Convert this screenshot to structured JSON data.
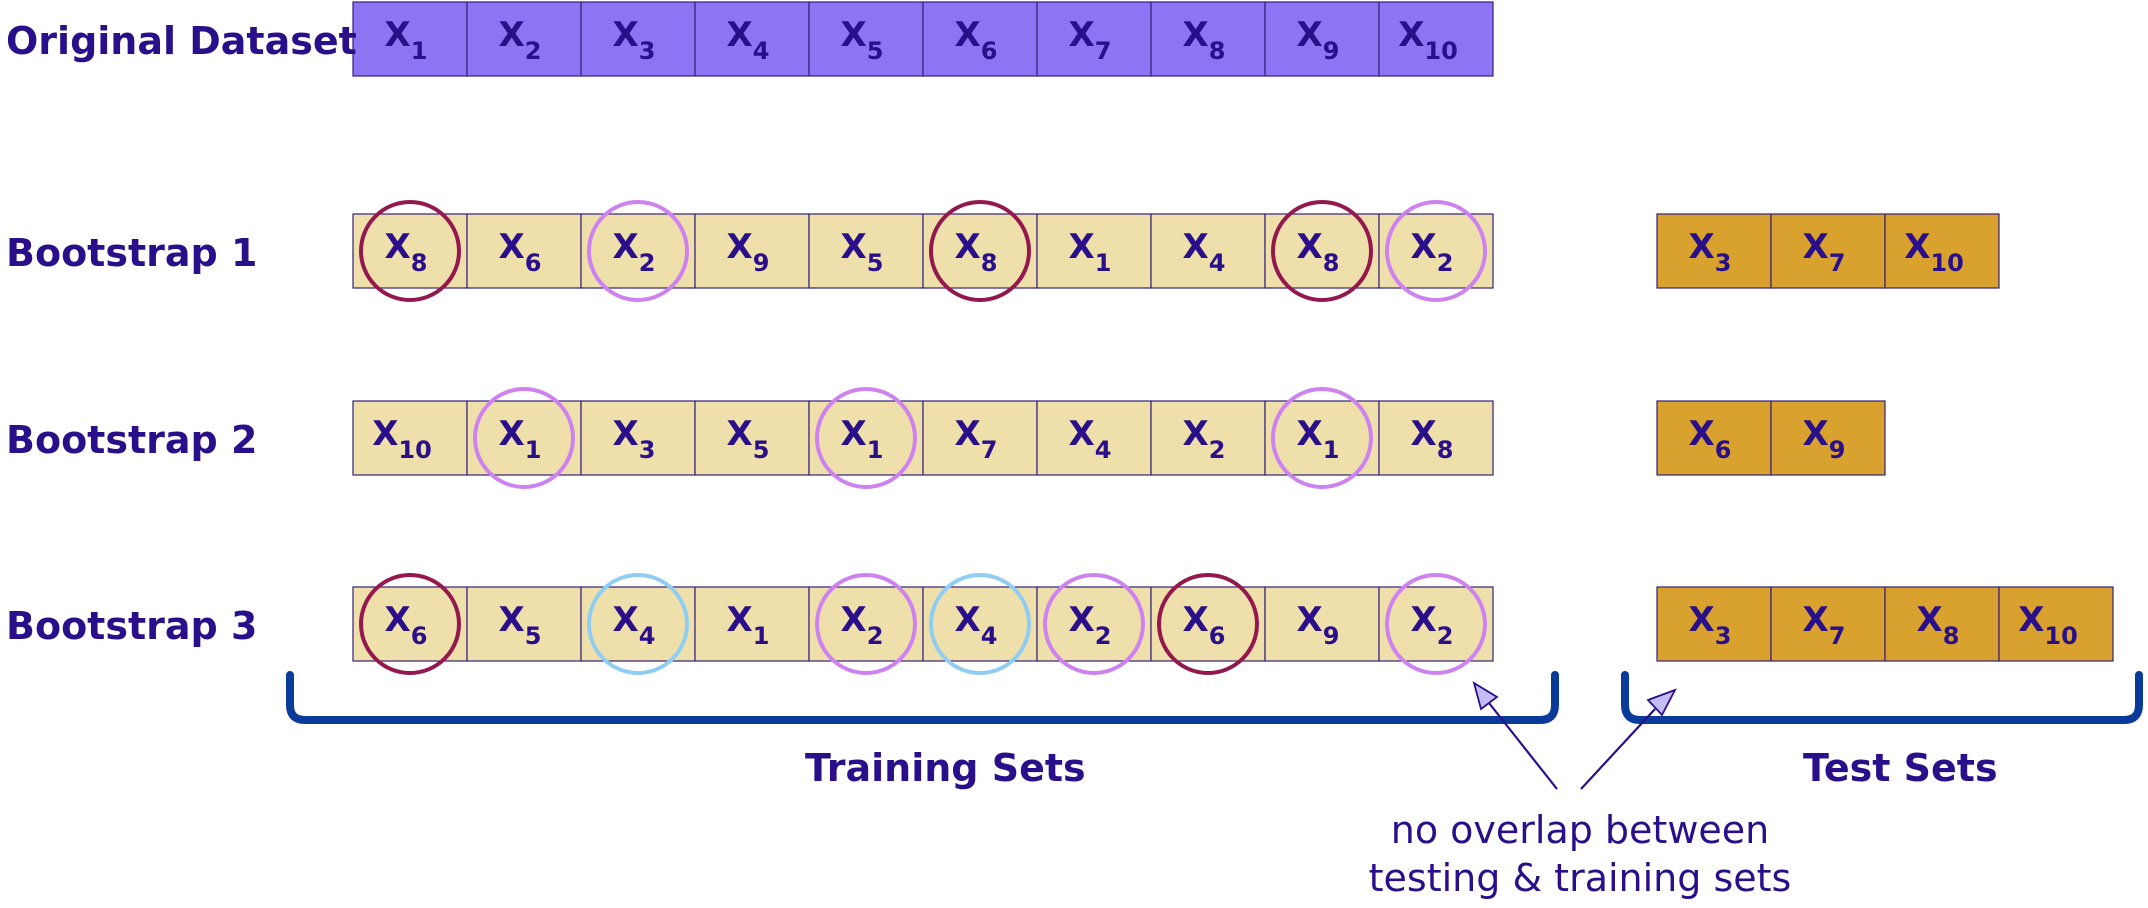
{
  "rows": [
    {
      "label": "Original Dataset",
      "training": [
        {
          "sub": "1"
        },
        {
          "sub": "2"
        },
        {
          "sub": "3"
        },
        {
          "sub": "4"
        },
        {
          "sub": "5"
        },
        {
          "sub": "6"
        },
        {
          "sub": "7"
        },
        {
          "sub": "8"
        },
        {
          "sub": "9"
        },
        {
          "sub": "10"
        }
      ],
      "test": []
    },
    {
      "label": "Bootstrap 1",
      "training": [
        {
          "sub": "8",
          "circle": "maroon"
        },
        {
          "sub": "6"
        },
        {
          "sub": "2",
          "circle": "violet"
        },
        {
          "sub": "9"
        },
        {
          "sub": "5"
        },
        {
          "sub": "8",
          "circle": "maroon"
        },
        {
          "sub": "1"
        },
        {
          "sub": "4"
        },
        {
          "sub": "8",
          "circle": "maroon"
        },
        {
          "sub": "2",
          "circle": "violet"
        }
      ],
      "test": [
        {
          "sub": "3"
        },
        {
          "sub": "7"
        },
        {
          "sub": "10"
        }
      ]
    },
    {
      "label": "Bootstrap 2",
      "training": [
        {
          "sub": "10"
        },
        {
          "sub": "1",
          "circle": "violet"
        },
        {
          "sub": "3"
        },
        {
          "sub": "5"
        },
        {
          "sub": "1",
          "circle": "violet"
        },
        {
          "sub": "7"
        },
        {
          "sub": "4"
        },
        {
          "sub": "2"
        },
        {
          "sub": "1",
          "circle": "violet"
        },
        {
          "sub": "8"
        }
      ],
      "test": [
        {
          "sub": "6"
        },
        {
          "sub": "9"
        }
      ]
    },
    {
      "label": "Bootstrap 3",
      "training": [
        {
          "sub": "6",
          "circle": "maroon"
        },
        {
          "sub": "5"
        },
        {
          "sub": "4",
          "circle": "sky"
        },
        {
          "sub": "1"
        },
        {
          "sub": "2",
          "circle": "violet"
        },
        {
          "sub": "4",
          "circle": "sky"
        },
        {
          "sub": "2",
          "circle": "violet"
        },
        {
          "sub": "6",
          "circle": "maroon"
        },
        {
          "sub": "9"
        },
        {
          "sub": "2",
          "circle": "violet"
        }
      ],
      "test": [
        {
          "sub": "3"
        },
        {
          "sub": "7"
        },
        {
          "sub": "8"
        },
        {
          "sub": "10"
        }
      ]
    }
  ],
  "cell_symbol": "X",
  "captions": {
    "training": "Training Sets",
    "test": "Test Sets"
  },
  "note": {
    "line1": "no overlap between",
    "line2": "testing & training sets"
  },
  "colors": {
    "text": "#2a0f8a",
    "original_fill": "#8e73f2",
    "training_fill": "#efdfaa",
    "test_fill": "#d9a22e",
    "cell_border": "#35207a",
    "brace": "#0a3a9a",
    "arrow_fill": "#c6bcf5",
    "circle_maroon": "#93184e",
    "circle_violet": "#cd82f0",
    "circle_sky": "#8fcdf2"
  }
}
